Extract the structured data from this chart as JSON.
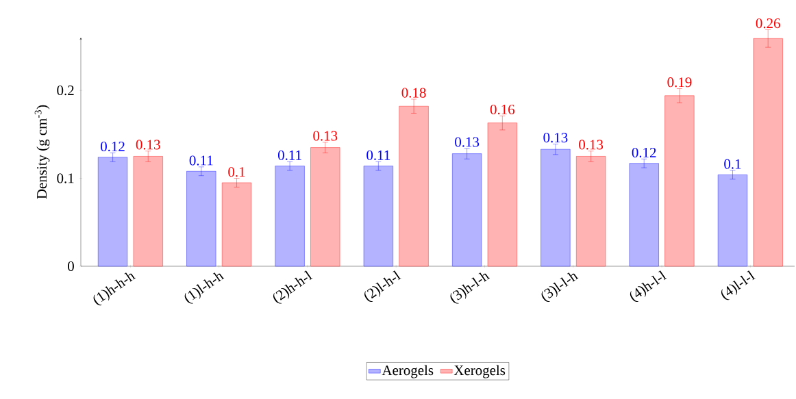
{
  "chart_data": {
    "type": "bar",
    "ylabel": "Density (g cm$^{-3}$)",
    "categories": [
      "(1)h-h-h",
      "(1)l-h-h",
      "(2)h-h-l",
      "(2)l-h-l",
      "(3)h-l-h",
      "(3)l-l-h",
      "(4)h-l-l",
      "(4)l-l-l"
    ],
    "series": [
      {
        "name": "Aerogels",
        "color": "#b3b3ff",
        "values": [
          0.124,
          0.108,
          0.114,
          0.114,
          0.128,
          0.133,
          0.117,
          0.104
        ],
        "errors": [
          0.005,
          0.005,
          0.005,
          0.005,
          0.006,
          0.006,
          0.005,
          0.005
        ],
        "value_labels": [
          "0.12",
          "0.11",
          "0.11",
          "0.11",
          "0.13",
          "0.13",
          "0.12",
          "0.1"
        ]
      },
      {
        "name": "Xerogels",
        "color": "#ffb3b3",
        "values": [
          0.125,
          0.095,
          0.135,
          0.182,
          0.163,
          0.125,
          0.194,
          0.259
        ],
        "errors": [
          0.006,
          0.005,
          0.006,
          0.008,
          0.008,
          0.006,
          0.008,
          0.01
        ],
        "value_labels": [
          "0.13",
          "0.1",
          "0.13",
          "0.18",
          "0.16",
          "0.13",
          "0.19",
          "0.26"
        ]
      }
    ],
    "ylim": [
      0,
      0.26
    ],
    "yticks": [
      0,
      0.1,
      0.2
    ],
    "grid": false,
    "legend": "bottom"
  }
}
